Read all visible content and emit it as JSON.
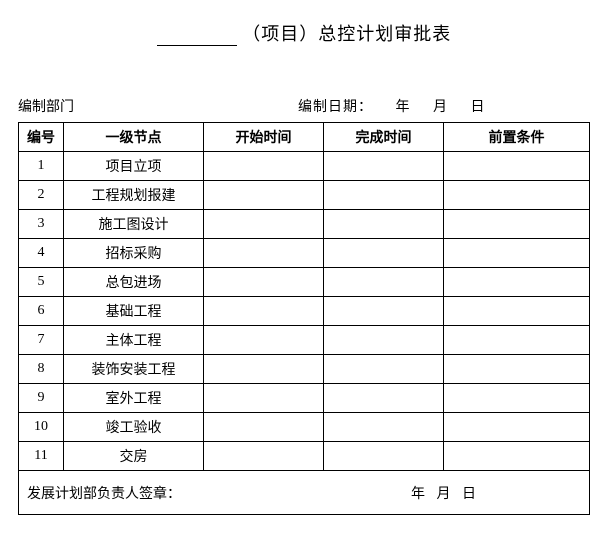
{
  "title": {
    "suffix": "（项目）总控计划审批表"
  },
  "meta": {
    "dept_label": "编制部门",
    "date_label": "编制日期：",
    "year_unit": "年",
    "month_unit": "月",
    "day_unit": "日"
  },
  "columns": {
    "no": "编号",
    "node": "一级节点",
    "start": "开始时间",
    "end": "完成时间",
    "pre": "前置条件"
  },
  "rows": [
    {
      "no": "1",
      "node": "项目立项",
      "start": "",
      "end": "",
      "pre": ""
    },
    {
      "no": "2",
      "node": "工程规划报建",
      "start": "",
      "end": "",
      "pre": ""
    },
    {
      "no": "3",
      "node": "施工图设计",
      "start": "",
      "end": "",
      "pre": ""
    },
    {
      "no": "4",
      "node": "招标采购",
      "start": "",
      "end": "",
      "pre": ""
    },
    {
      "no": "5",
      "node": "总包进场",
      "start": "",
      "end": "",
      "pre": ""
    },
    {
      "no": "6",
      "node": "基础工程",
      "start": "",
      "end": "",
      "pre": ""
    },
    {
      "no": "7",
      "node": "主体工程",
      "start": "",
      "end": "",
      "pre": ""
    },
    {
      "no": "8",
      "node": "装饰安装工程",
      "start": "",
      "end": "",
      "pre": ""
    },
    {
      "no": "9",
      "node": "室外工程",
      "start": "",
      "end": "",
      "pre": ""
    },
    {
      "no": "10",
      "node": "竣工验收",
      "start": "",
      "end": "",
      "pre": ""
    },
    {
      "no": "11",
      "node": "交房",
      "start": "",
      "end": "",
      "pre": ""
    }
  ],
  "footer": {
    "sign_label": "发展计划部负责人签章：",
    "year_unit": "年",
    "month_unit": "月",
    "day_unit": "日"
  }
}
